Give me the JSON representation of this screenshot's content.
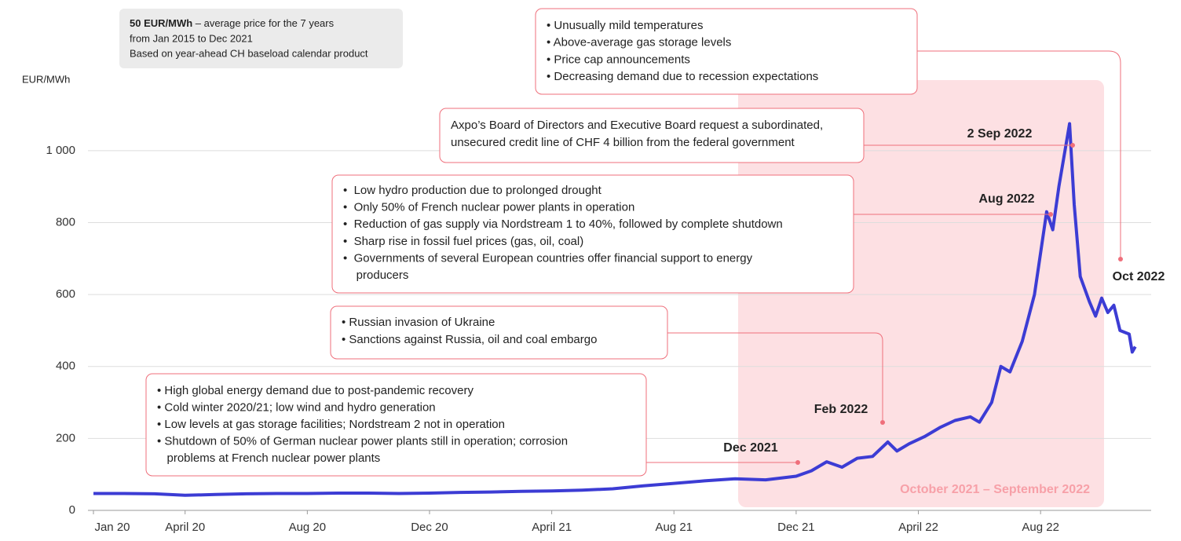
{
  "chart_data": {
    "type": "line",
    "y_label": "EUR/MWh",
    "note_lines": [
      "50 EUR/MWh",
      " – average price for the 7 years",
      "from Jan 2015 to Dec 2021",
      "Based on year-ahead CH baseload calendar product"
    ],
    "period_label": "October 2021 – September 2022",
    "x": [
      0,
      1,
      2,
      3,
      4,
      5,
      6,
      7,
      8,
      9,
      10,
      11,
      12,
      13,
      14,
      15,
      16,
      17,
      18,
      19,
      20,
      21,
      22,
      23,
      23.5,
      24,
      24.5,
      25,
      25.5,
      26,
      26.3,
      26.7,
      27.2,
      27.7,
      28.2,
      28.7,
      29,
      29.4,
      29.7,
      30,
      30.4,
      30.8,
      31.2,
      31.4,
      31.6,
      31.95,
      32.1,
      32.3,
      32.6,
      32.8,
      33,
      33.2,
      33.4,
      33.6,
      33.9,
      34,
      34.1
    ],
    "series": [
      {
        "name": "Price",
        "color": "#3c3cd4",
        "values": [
          47,
          47,
          46,
          42,
          44,
          46,
          47,
          47,
          48,
          48,
          47,
          48,
          50,
          51,
          53,
          54,
          56,
          60,
          68,
          75,
          82,
          88,
          85,
          95,
          110,
          135,
          120,
          145,
          150,
          190,
          165,
          185,
          205,
          230,
          250,
          260,
          245,
          300,
          400,
          385,
          470,
          600,
          830,
          780,
          900,
          1075,
          850,
          650,
          580,
          540,
          590,
          550,
          570,
          500,
          490,
          440,
          455
        ]
      }
    ],
    "xlim": [
      -0.18,
      34.62
    ],
    "xticks": [
      {
        "value": 0,
        "label": "Jan 20"
      },
      {
        "value": 3,
        "label": "April 20"
      },
      {
        "value": 7,
        "label": "Aug 20"
      },
      {
        "value": 11,
        "label": "Dec 20"
      },
      {
        "value": 15,
        "label": "April 21"
      },
      {
        "value": 19,
        "label": "Aug 21"
      },
      {
        "value": 23,
        "label": "Dec 21"
      },
      {
        "value": 27,
        "label": "April 22"
      },
      {
        "value": 31,
        "label": "Aug 22"
      }
    ],
    "ylim": [
      0,
      1100
    ],
    "yticks": [
      0,
      200,
      400,
      600,
      800,
      {
        "value": 1000,
        "label": "1 000"
      }
    ],
    "grid": true,
    "annotations": [
      {
        "label": "Dec 2021",
        "lines": [
          "• High global energy demand due to post-pandemic recovery",
          "• Cold winter 2020/21; low wind and hydro generation",
          "• Low levels at gas storage facilities; Nordstream 2 not in operation",
          "• Shutdown of 50% of German nuclear power plants still in operation; corrosion",
          "   problems at French nuclear power plants"
        ]
      },
      {
        "label": "Feb 2022",
        "lines": [
          "• Russian invasion of Ukraine",
          "• Sanctions against Russia, oil and coal embargo"
        ]
      },
      {
        "label": "Aug 2022",
        "lines": [
          "•  Low hydro production due to prolonged drought",
          "•  Only 50% of French nuclear power plants in operation",
          "•  Reduction of gas supply via Nordstream 1 to 40%, followed by complete shutdown",
          "•  Sharp rise in fossil fuel prices (gas, oil, coal)",
          "•  Governments of several European countries offer financial support to energy",
          "    producers"
        ]
      },
      {
        "label": "2 Sep 2022",
        "lines": [
          "Axpo’s Board of Directors and Executive Board request a subordinated,",
          "unsecured credit line of CHF 4 billion from the federal government"
        ]
      },
      {
        "label": "Oct 2022",
        "lines": [
          "• Unusually mild temperatures",
          "• Above-average gas storage levels",
          "• Price cap announcements",
          "• Decreasing demand due to recession expectations"
        ]
      }
    ]
  }
}
